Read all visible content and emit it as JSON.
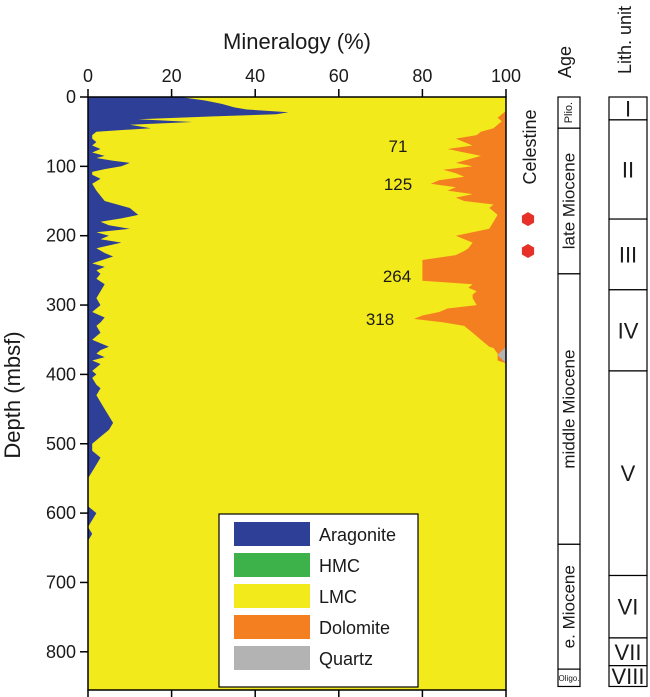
{
  "chart_data": {
    "type": "area",
    "title": "Mineralogy (%)",
    "xlabel": "Mineralogy (%)",
    "ylabel": "Depth (mbsf)",
    "xlim": [
      0,
      100
    ],
    "ylim": [
      0,
      850
    ],
    "y_inverted": true,
    "x_ticks": [
      0,
      20,
      40,
      60,
      80,
      100
    ],
    "y_ticks": [
      0,
      100,
      200,
      300,
      400,
      500,
      600,
      700,
      800
    ],
    "legend_position": "bottom-right",
    "series": [
      {
        "name": "Aragonite",
        "color": "#2e3f97"
      },
      {
        "name": "HMC",
        "color": "#3db24a"
      },
      {
        "name": "LMC",
        "color": "#f3ea1c"
      },
      {
        "name": "Dolomite",
        "color": "#f47f20"
      },
      {
        "name": "Quartz",
        "color": "#b3b3b3"
      }
    ],
    "aragonite_profile": {
      "depth": [
        0,
        5,
        10,
        15,
        18,
        22,
        25,
        28,
        32,
        36,
        40,
        45,
        50,
        55,
        60,
        65,
        70,
        75,
        80,
        85,
        88,
        92,
        95,
        100,
        104,
        108,
        112,
        118,
        125,
        135,
        150,
        160,
        170,
        175,
        180,
        185,
        190,
        195,
        200,
        205,
        210,
        218,
        225,
        230,
        240,
        245,
        250,
        255,
        262,
        270,
        280,
        290,
        300,
        305,
        310,
        318,
        325,
        330,
        340,
        350,
        360,
        365,
        370,
        375,
        380,
        385,
        390,
        395,
        400,
        405,
        415,
        420,
        430,
        440,
        450,
        460,
        470,
        480,
        490,
        495,
        500,
        510,
        520,
        530,
        540,
        550,
        560,
        570,
        580,
        590,
        600,
        610,
        620,
        630,
        640,
        650,
        660,
        700,
        800,
        850
      ],
      "percent": [
        22,
        28,
        32,
        35,
        38,
        48,
        45,
        30,
        12,
        25,
        10,
        15,
        2,
        1,
        1,
        2,
        1,
        3,
        1,
        4,
        2,
        6,
        10,
        8,
        4,
        1,
        1,
        3,
        1,
        2,
        4,
        10,
        12,
        8,
        3,
        5,
        10,
        2,
        5,
        3,
        8,
        2,
        4,
        6,
        1,
        4,
        2,
        3,
        2,
        4,
        3,
        2,
        3,
        2,
        1,
        4,
        3,
        2,
        3,
        1,
        5,
        3,
        2,
        4,
        1,
        3,
        2,
        1,
        2,
        1,
        2,
        3,
        2,
        3,
        4,
        5,
        6,
        5,
        3,
        2,
        1,
        1,
        3,
        2,
        1,
        0,
        0,
        0,
        0,
        0,
        2,
        1,
        0,
        1,
        0,
        0,
        0,
        0,
        0,
        0
      ]
    },
    "dolomite_profile": {
      "depth": [
        0,
        20,
        25,
        30,
        35,
        40,
        45,
        50,
        55,
        60,
        65,
        70,
        75,
        80,
        85,
        90,
        95,
        100,
        105,
        110,
        115,
        120,
        125,
        130,
        135,
        140,
        145,
        150,
        155,
        160,
        165,
        170,
        180,
        190,
        200,
        210,
        218,
        222,
        228,
        235,
        250,
        265,
        270,
        275,
        280,
        285,
        290,
        300,
        305,
        310,
        315,
        320,
        325,
        330,
        340,
        350,
        360,
        362,
        370,
        380,
        384,
        850
      ],
      "percent": [
        0,
        0,
        1,
        2,
        1,
        2,
        3,
        6,
        7,
        12,
        10,
        8,
        14,
        10,
        6,
        9,
        12,
        8,
        15,
        12,
        10,
        16,
        18,
        12,
        14,
        8,
        12,
        10,
        3,
        4,
        3,
        2,
        3,
        4,
        12,
        8,
        9,
        10,
        12,
        20,
        20,
        20,
        8,
        9,
        7,
        8,
        8,
        7,
        14,
        16,
        20,
        22,
        15,
        10,
        8,
        6,
        4,
        3,
        2,
        2,
        0,
        0
      ]
    },
    "quartz_profile": {
      "depth": [
        360,
        366,
        372,
        378,
        384
      ],
      "percent": [
        0,
        1,
        2,
        1,
        0
      ]
    },
    "dolomite_labels": [
      "71",
      "125",
      "264",
      "318"
    ],
    "celestine_label": "Celestine",
    "celestine_markers_depth": [
      176,
      222
    ],
    "age_column": {
      "title": "Age",
      "units": [
        {
          "label": "Plio.",
          "top": 0,
          "bottom": 45
        },
        {
          "label": "late Miocene",
          "top": 45,
          "bottom": 255
        },
        {
          "label": "middle Miocene",
          "top": 255,
          "bottom": 645
        },
        {
          "label": "e. Miocene",
          "top": 645,
          "bottom": 825
        },
        {
          "label": "Oligo.",
          "top": 825,
          "bottom": 850
        }
      ]
    },
    "lith_column": {
      "title": "Lith. unit",
      "units": [
        {
          "label": "I",
          "top": 0,
          "bottom": 33
        },
        {
          "label": "II",
          "top": 33,
          "bottom": 176
        },
        {
          "label": "III",
          "top": 176,
          "bottom": 278
        },
        {
          "label": "IV",
          "top": 278,
          "bottom": 395
        },
        {
          "label": "V",
          "top": 395,
          "bottom": 690
        },
        {
          "label": "VI",
          "top": 690,
          "bottom": 780
        },
        {
          "label": "VII",
          "top": 780,
          "bottom": 820
        },
        {
          "label": "VIII",
          "top": 820,
          "bottom": 850
        }
      ]
    }
  }
}
